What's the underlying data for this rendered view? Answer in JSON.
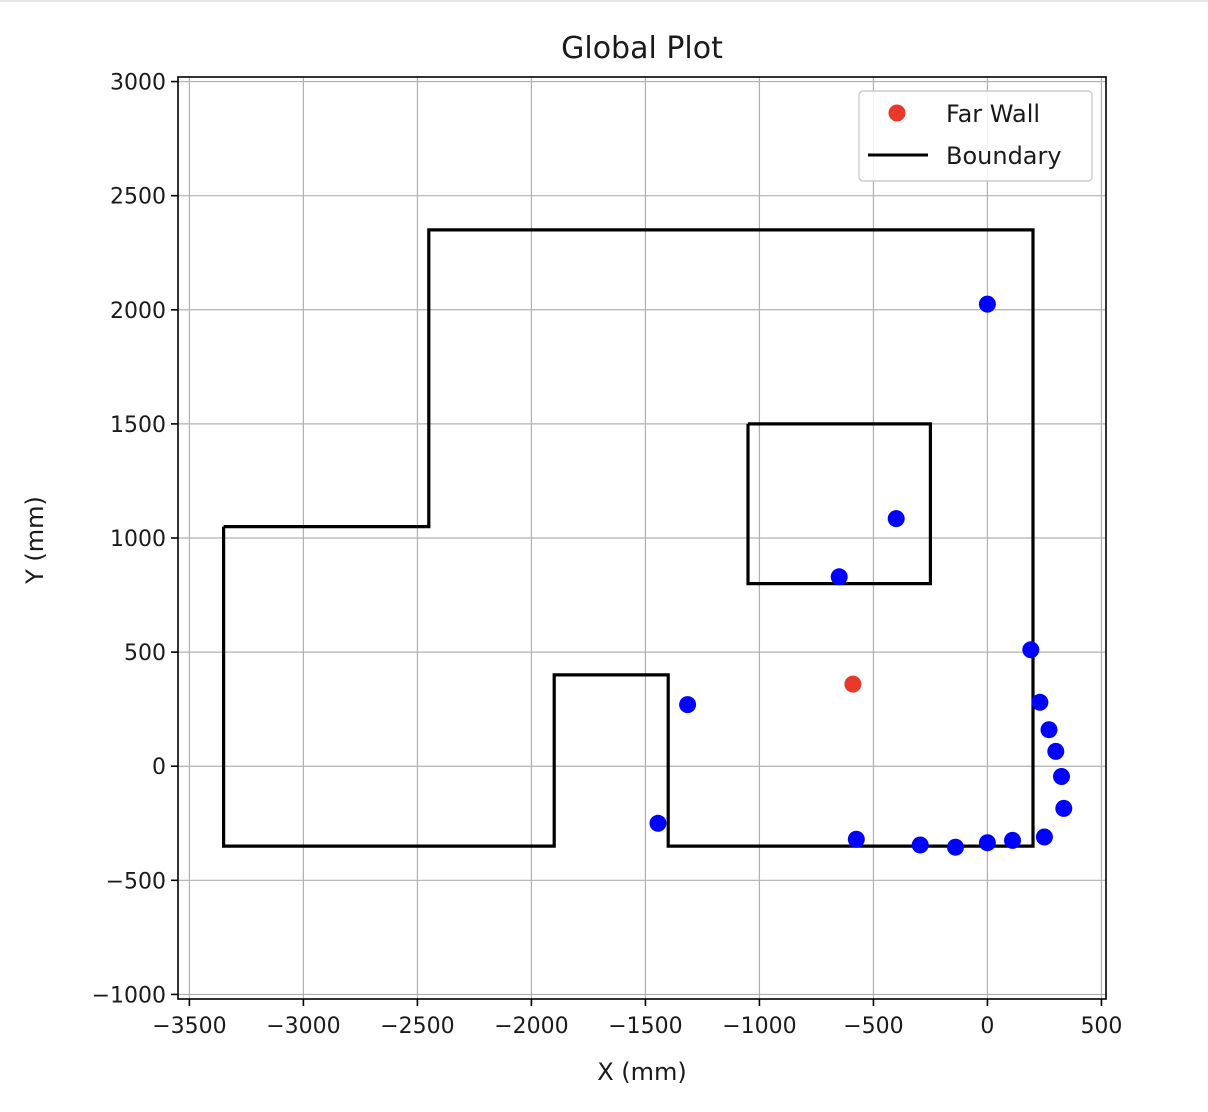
{
  "chart_data": {
    "type": "scatter",
    "title": "Global Plot",
    "xlabel": "X (mm)",
    "ylabel": "Y (mm)",
    "xlim": [
      -3550,
      520
    ],
    "ylim": [
      -1020,
      3020
    ],
    "xticks": [
      -3500,
      -3000,
      -2500,
      -2000,
      -1500,
      -1000,
      -500,
      0,
      500
    ],
    "yticks": [
      -1000,
      -500,
      0,
      500,
      1000,
      1500,
      2000,
      2500,
      3000
    ],
    "xtick_labels": [
      "−3500",
      "−3000",
      "−2500",
      "−2000",
      "−1500",
      "−1000",
      "−500",
      "0",
      "500"
    ],
    "ytick_labels": [
      "−1000",
      "−500",
      "0",
      "500",
      "1000",
      "1500",
      "2000",
      "2500",
      "3000"
    ],
    "grid": true,
    "legend": {
      "placement": "upper right",
      "entries": [
        {
          "label": "Far Wall",
          "kind": "marker",
          "color": "#e8392a"
        },
        {
          "label": "Boundary",
          "kind": "line",
          "color": "#000000"
        }
      ]
    },
    "series": [
      {
        "name": "Boundary",
        "kind": "line",
        "color": "#000000",
        "paths": [
          {
            "x": [
              -3350,
              -2450,
              -2450,
              200,
              200,
              -1400,
              -1400,
              -1900,
              -1900,
              -3350,
              -3350
            ],
            "y": [
              1050,
              1050,
              2350,
              2350,
              -350,
              -350,
              400,
              400,
              -350,
              -350,
              1050
            ]
          },
          {
            "x": [
              -1050,
              -250,
              -250,
              -1050,
              -1050
            ],
            "y": [
              1500,
              1500,
              800,
              800,
              1500
            ]
          }
        ]
      },
      {
        "name": "",
        "kind": "scatter",
        "color": "#0000ff",
        "x": [
          0,
          -400,
          -650,
          190,
          230,
          270,
          300,
          325,
          335,
          250,
          110,
          0,
          -140,
          -295,
          -575,
          -1315,
          -1445
        ],
        "y": [
          2025,
          1085,
          830,
          510,
          280,
          160,
          65,
          -45,
          -185,
          -310,
          -325,
          -335,
          -355,
          -345,
          -320,
          270,
          -250
        ]
      },
      {
        "name": "Far Wall",
        "kind": "scatter",
        "color": "#e8392a",
        "x": [
          -590
        ],
        "y": [
          360
        ]
      }
    ]
  }
}
